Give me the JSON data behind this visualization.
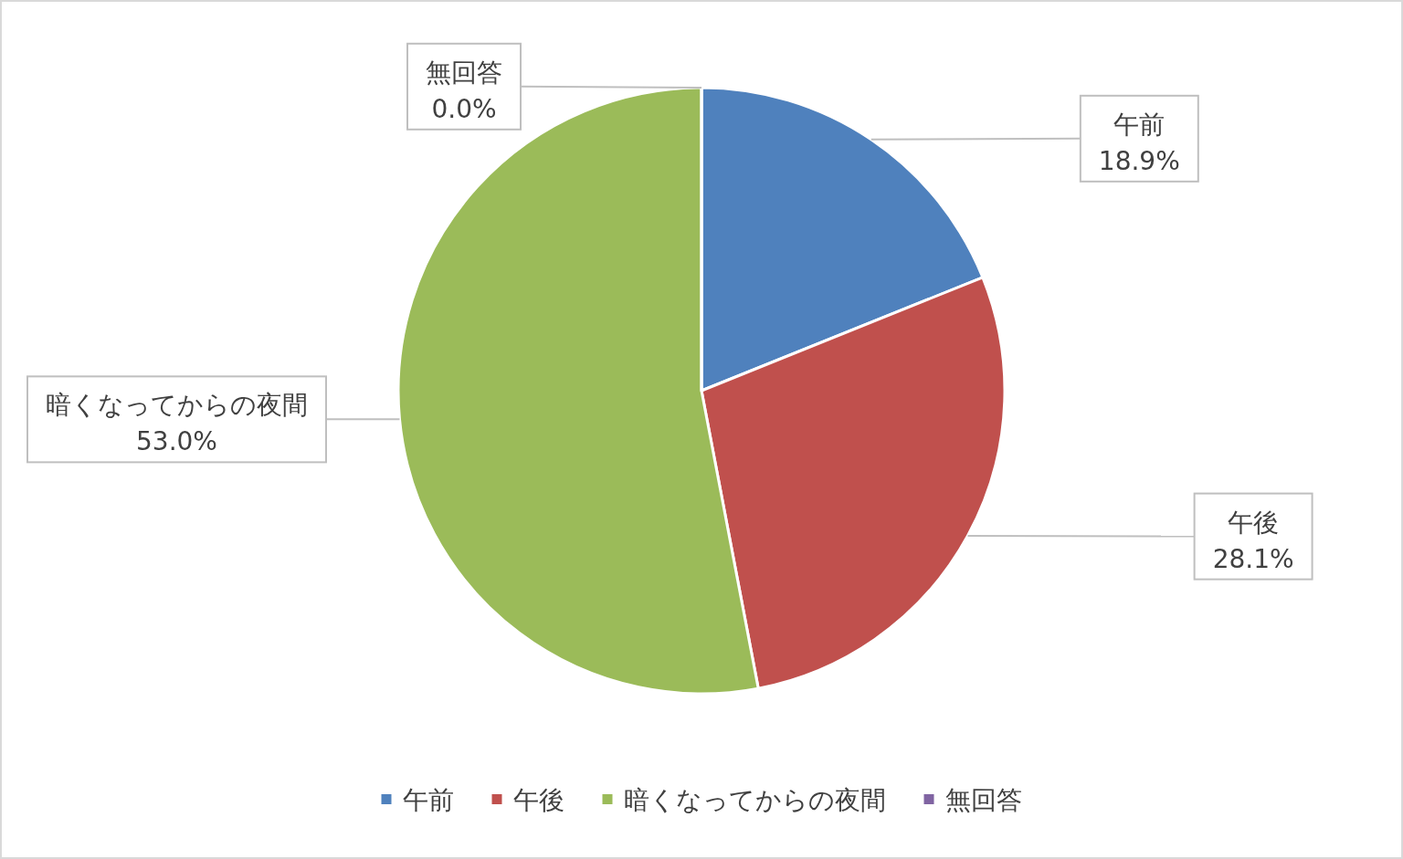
{
  "chart_data": {
    "type": "pie",
    "categories": [
      "午前",
      "午後",
      "暗くなってからの夜間",
      "無回答"
    ],
    "values": [
      18.9,
      28.1,
      53.0,
      0.0
    ],
    "value_labels": [
      "18.9%",
      "28.1%",
      "53.0%",
      "0.0%"
    ],
    "colors": [
      "#4f81bd",
      "#c0504d",
      "#9bbb59",
      "#8064a2"
    ],
    "legend": "bottom"
  }
}
